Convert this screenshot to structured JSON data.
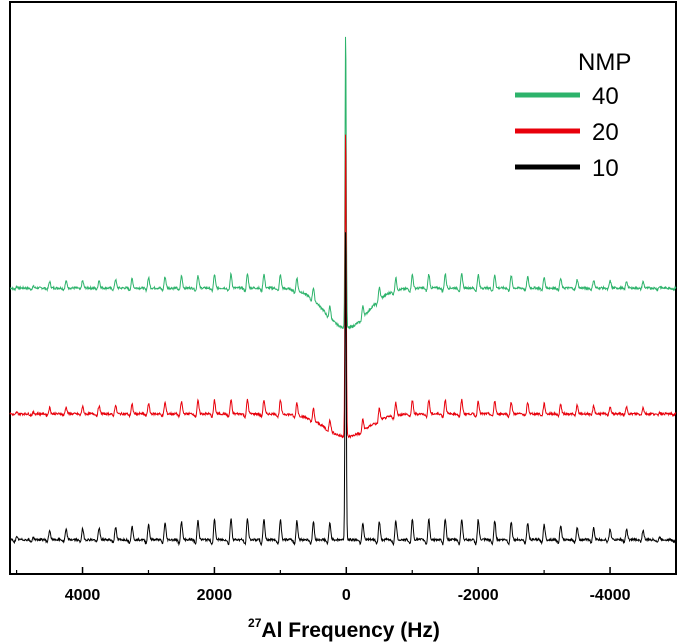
{
  "chart_data": {
    "type": "line",
    "xlabel_sup": "27",
    "xlabel": "Al Frequency (Hz)",
    "xlim": [
      5100,
      -5000
    ],
    "x_ticks": [
      4000,
      2000,
      0,
      -2000,
      -4000
    ],
    "x_tick_labels": [
      "4000",
      "2000",
      "0",
      "-2000",
      "-4000"
    ],
    "y_axis_visible": false,
    "grid": false,
    "legend": {
      "title": "NMP",
      "position": "top-right"
    },
    "series": [
      {
        "name": "40",
        "color": "#2db36b",
        "baseline": 0.5,
        "central_peak_height": 0.52,
        "central_dip": 0.07,
        "sideband_spacing_hz": 250,
        "sideband_height": 0.02
      },
      {
        "name": "20",
        "color": "#e8000b",
        "baseline": 0.28,
        "central_peak_height": 0.54,
        "central_dip": 0.04,
        "sideband_spacing_hz": 250,
        "sideband_height": 0.02
      },
      {
        "name": "10",
        "color": "#000000",
        "baseline": 0.06,
        "central_peak_height": 0.55,
        "central_dip": 0.0,
        "sideband_spacing_hz": 250,
        "sideband_height": 0.03
      }
    ]
  }
}
